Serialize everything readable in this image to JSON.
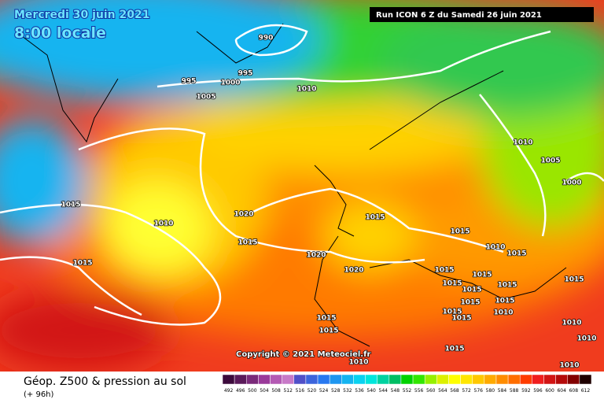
{
  "header": {
    "date": "Mercredi 30 juin 2021",
    "time": "8:00 locale",
    "run": "Run ICON 6 Z du Samedi 26 juin 2021"
  },
  "copyright": "Copyright © 2021 Meteociel.fr",
  "footer": {
    "title": "Géop. Z500 & pression au sol",
    "lead": "(+ 96h)"
  },
  "isobar_labels": [
    "990",
    "995",
    "1000",
    "995",
    "1005",
    "1010",
    "1010",
    "1005",
    "1000",
    "1015",
    "1010",
    "1020",
    "1015",
    "1015",
    "1015",
    "1020",
    "1020",
    "1015",
    "1010",
    "1015",
    "1015",
    "1015",
    "1015",
    "1015",
    "1015",
    "1015",
    "1015",
    "1015",
    "1015",
    "1015",
    "1015",
    "1015",
    "1010",
    "1010",
    "1010",
    "1010",
    "1010",
    "1015"
  ],
  "scale": {
    "values": [
      492,
      496,
      500,
      504,
      508,
      512,
      516,
      520,
      524,
      528,
      532,
      536,
      540,
      544,
      548,
      552,
      556,
      560,
      564,
      568,
      572,
      576,
      580,
      584,
      588,
      592,
      596,
      600,
      604,
      608,
      612
    ],
    "colors": [
      "#3c0a3c",
      "#5a1a5a",
      "#7a2a7a",
      "#9a3a9a",
      "#b45ab4",
      "#c87ac8",
      "#5050c8",
      "#3c64dc",
      "#2878f0",
      "#1e96f0",
      "#14b4f0",
      "#0ad2f0",
      "#00e6dc",
      "#00d2a0",
      "#00be64",
      "#00d200",
      "#32e600",
      "#96f000",
      "#dcf000",
      "#ffff00",
      "#ffe600",
      "#ffc800",
      "#ffaa00",
      "#ff8c00",
      "#ff6e00",
      "#ff3c00",
      "#f01e1e",
      "#d21414",
      "#b40a0a",
      "#820000",
      "#1e0000"
    ]
  }
}
